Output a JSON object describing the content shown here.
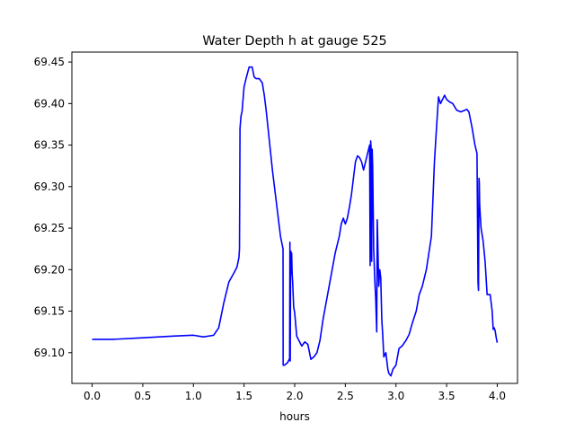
{
  "chart_data": {
    "type": "line",
    "title": "Water Depth h at gauge 525",
    "xlabel": "hours",
    "ylabel": "",
    "xlim": [
      -0.2,
      4.2
    ],
    "ylim": [
      69.063,
      69.462
    ],
    "xticks": [
      "0.0",
      "0.5",
      "1.0",
      "1.5",
      "2.0",
      "2.5",
      "3.0",
      "3.5",
      "4.0"
    ],
    "yticks": [
      "69.10",
      "69.15",
      "69.20",
      "69.25",
      "69.30",
      "69.35",
      "69.40",
      "69.45"
    ],
    "grid": false,
    "legend": "none",
    "colors": {
      "line": "#0000ff",
      "axes": "#000000",
      "background": "#ffffff"
    },
    "series": [
      {
        "x": [
          0.0,
          0.2,
          0.5,
          0.8,
          1.0,
          1.05,
          1.1,
          1.2,
          1.25,
          1.3,
          1.35,
          1.4,
          1.43,
          1.45,
          1.455,
          1.46,
          1.47,
          1.48,
          1.5,
          1.52,
          1.55,
          1.58,
          1.6,
          1.62,
          1.65,
          1.68,
          1.7,
          1.72,
          1.75,
          1.78,
          1.8,
          1.83,
          1.86,
          1.885,
          1.886,
          1.9,
          1.93,
          1.95,
          1.953,
          1.956,
          1.96,
          1.963,
          1.966,
          1.97,
          1.975,
          1.98,
          1.985,
          1.99,
          2.0,
          2.02,
          2.04,
          2.07,
          2.1,
          2.13,
          2.16,
          2.19,
          2.22,
          2.25,
          2.28,
          2.31,
          2.34,
          2.37,
          2.4,
          2.42,
          2.44,
          2.46,
          2.48,
          2.5,
          2.52,
          2.54,
          2.56,
          2.58,
          2.6,
          2.62,
          2.64,
          2.66,
          2.68,
          2.7,
          2.72,
          2.74,
          2.745,
          2.75,
          2.755,
          2.76,
          2.765,
          2.77,
          2.78,
          2.79,
          2.8,
          2.81,
          2.815,
          2.82,
          2.83,
          2.84,
          2.85,
          2.86,
          2.87,
          2.88,
          2.9,
          2.92,
          2.93,
          2.95,
          2.97,
          3.0,
          3.03,
          3.06,
          3.1,
          3.13,
          3.16,
          3.2,
          3.23,
          3.26,
          3.3,
          3.35,
          3.38,
          3.4,
          3.42,
          3.44,
          3.46,
          3.48,
          3.5,
          3.53,
          3.56,
          3.6,
          3.64,
          3.68,
          3.7,
          3.72,
          3.75,
          3.78,
          3.8,
          3.81,
          3.815,
          3.82,
          3.823,
          3.826,
          3.83,
          3.84,
          3.86,
          3.88,
          3.9,
          3.93,
          3.95,
          3.96,
          3.97,
          3.98,
          3.99,
          4.0
        ],
        "y": [
          69.116,
          69.116,
          69.118,
          69.12,
          69.121,
          69.12,
          69.119,
          69.121,
          69.13,
          69.16,
          69.185,
          69.196,
          69.203,
          69.215,
          69.225,
          69.37,
          69.385,
          69.39,
          69.42,
          69.43,
          69.444,
          69.444,
          69.432,
          69.43,
          69.43,
          69.425,
          69.41,
          69.39,
          69.355,
          69.32,
          69.3,
          69.27,
          69.24,
          69.225,
          69.085,
          69.085,
          69.088,
          69.093,
          69.233,
          69.09,
          69.215,
          69.222,
          69.195,
          69.22,
          69.195,
          69.185,
          69.17,
          69.155,
          69.148,
          69.12,
          69.115,
          69.108,
          69.113,
          69.11,
          69.092,
          69.095,
          69.1,
          69.115,
          69.14,
          69.16,
          69.18,
          69.2,
          69.22,
          69.23,
          69.24,
          69.255,
          69.262,
          69.255,
          69.262,
          69.275,
          69.29,
          69.31,
          69.33,
          69.337,
          69.335,
          69.33,
          69.32,
          69.33,
          69.34,
          69.35,
          69.205,
          69.355,
          69.345,
          69.21,
          69.345,
          69.325,
          69.225,
          69.19,
          69.165,
          69.125,
          69.26,
          69.235,
          69.18,
          69.2,
          69.19,
          69.14,
          69.12,
          69.095,
          69.1,
          69.08,
          69.075,
          69.072,
          69.08,
          69.085,
          69.105,
          69.108,
          69.115,
          69.122,
          69.135,
          69.15,
          69.17,
          69.18,
          69.2,
          69.24,
          69.33,
          69.37,
          69.408,
          69.4,
          69.405,
          69.41,
          69.405,
          69.402,
          69.4,
          69.392,
          69.39,
          69.392,
          69.393,
          69.39,
          69.372,
          69.35,
          69.34,
          69.185,
          69.175,
          69.31,
          69.305,
          69.28,
          69.27,
          69.25,
          69.235,
          69.21,
          69.17,
          69.17,
          69.15,
          69.128,
          69.13,
          69.126,
          69.118,
          69.112
        ]
      }
    ]
  }
}
